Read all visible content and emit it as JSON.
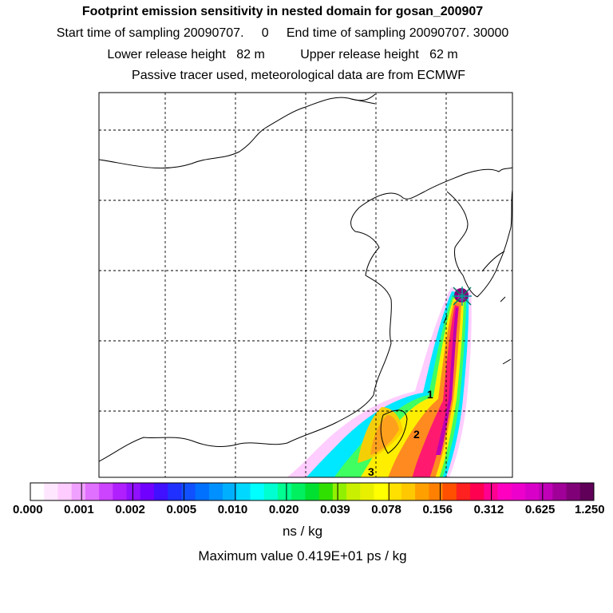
{
  "header": {
    "title": "Footprint emission sensitivity in nested domain for gosan_200907",
    "line1": "Start time of sampling 20090707.     0     End time of sampling 20090707. 30000",
    "line2": "Lower release height   82 m          Upper release height   62 m",
    "line3": "Passive tracer used, meteorological data are from ECMWF"
  },
  "map": {
    "site": "gosan",
    "markers": [
      "1",
      "2",
      "3"
    ]
  },
  "legend": {
    "labels": [
      "0.000",
      "0.001",
      "0.002",
      "0.005",
      "0.010",
      "0.020",
      "0.039",
      "0.078",
      "0.156",
      "0.312",
      "0.625",
      "1.250"
    ],
    "colors": [
      "#ffffff",
      "#ffe6ff",
      "#ffccff",
      "#f0a0ff",
      "#e070ff",
      "#cc44ff",
      "#b020ff",
      "#9010ff",
      "#7000ff",
      "#4010ff",
      "#2030ff",
      "#1050ff",
      "#0070ff",
      "#0090ff",
      "#00b0ff",
      "#00d8ff",
      "#00ffff",
      "#00ffd0",
      "#00ff90",
      "#00f060",
      "#00e030",
      "#30e000",
      "#90f000",
      "#c8f000",
      "#e8f000",
      "#ffff00",
      "#ffe000",
      "#ffc800",
      "#ffa000",
      "#ff8000",
      "#ff5000",
      "#ff2020",
      "#ff0050",
      "#ff0090",
      "#ff00c0",
      "#ee00cc",
      "#d800c8",
      "#c000b8",
      "#a00098",
      "#800078",
      "#600058"
    ],
    "unit": "ns / kg",
    "max_value": "Maximum value  0.419E+01 ps / kg"
  }
}
